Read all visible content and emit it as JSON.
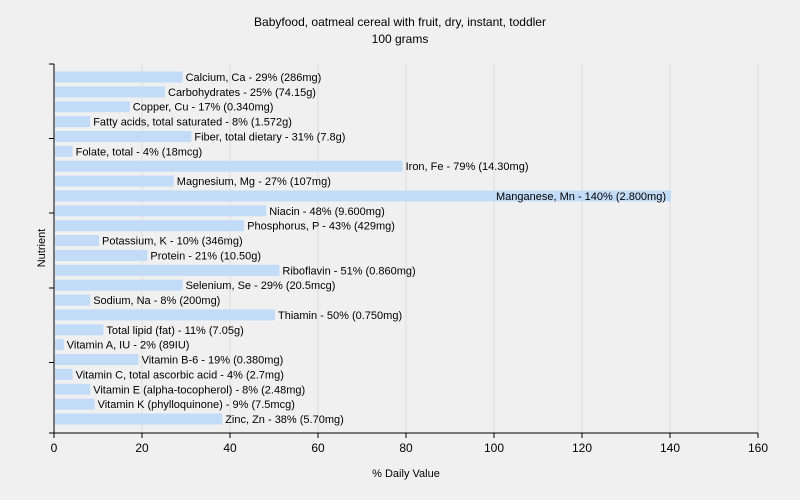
{
  "chart_data": {
    "type": "bar",
    "orientation": "horizontal",
    "title": "Babyfood, oatmeal cereal with fruit, dry, instant, toddler",
    "subtitle": "100 grams",
    "xlabel": "% Daily Value",
    "ylabel": "Nutrient",
    "xlim": [
      0,
      160
    ],
    "xticks": [
      "0",
      "20",
      "40",
      "60",
      "80",
      "100",
      "120",
      "140",
      "160"
    ],
    "grid": true,
    "bar_color": "#c2dcf8",
    "categories": [
      "Calcium, Ca",
      "Carbohydrates",
      "Copper, Cu",
      "Fatty acids, total saturated",
      "Fiber, total dietary",
      "Folate, total",
      "Iron, Fe",
      "Magnesium, Mg",
      "Manganese, Mn",
      "Niacin",
      "Phosphorus, P",
      "Potassium, K",
      "Protein",
      "Riboflavin",
      "Selenium, Se",
      "Sodium, Na",
      "Thiamin",
      "Total lipid (fat)",
      "Vitamin A, IU",
      "Vitamin B-6",
      "Vitamin C, total ascorbic acid",
      "Vitamin E (alpha-tocopherol)",
      "Vitamin K (phylloquinone)",
      "Zinc, Zn"
    ],
    "values": [
      29,
      25,
      17,
      8,
      31,
      4,
      79,
      27,
      140,
      48,
      43,
      10,
      21,
      51,
      29,
      8,
      50,
      11,
      2,
      19,
      4,
      8,
      9,
      38
    ],
    "labels": [
      "Calcium, Ca - 29% (286mg)",
      "Carbohydrates - 25% (74.15g)",
      "Copper, Cu - 17% (0.340mg)",
      "Fatty acids, total saturated - 8% (1.572g)",
      "Fiber, total dietary - 31% (7.8g)",
      "Folate, total - 4% (18mcg)",
      "Iron, Fe - 79% (14.30mg)",
      "Magnesium, Mg - 27% (107mg)",
      "Manganese, Mn - 140% (2.800mg)",
      "Niacin - 48% (9.600mg)",
      "Phosphorus, P - 43% (429mg)",
      "Potassium, K - 10% (346mg)",
      "Protein - 21% (10.50g)",
      "Riboflavin - 51% (0.860mg)",
      "Selenium, Se - 29% (20.5mcg)",
      "Sodium, Na - 8% (200mg)",
      "Thiamin - 50% (0.750mg)",
      "Total lipid (fat) - 11% (7.05g)",
      "Vitamin A, IU - 2% (89IU)",
      "Vitamin B-6 - 19% (0.380mg)",
      "Vitamin C, total ascorbic acid - 4% (2.7mg)",
      "Vitamin E (alpha-tocopherol) - 8% (2.48mg)",
      "Vitamin K (phylloquinone) - 9% (7.5mcg)",
      "Zinc, Zn - 38% (5.70mg)"
    ]
  }
}
